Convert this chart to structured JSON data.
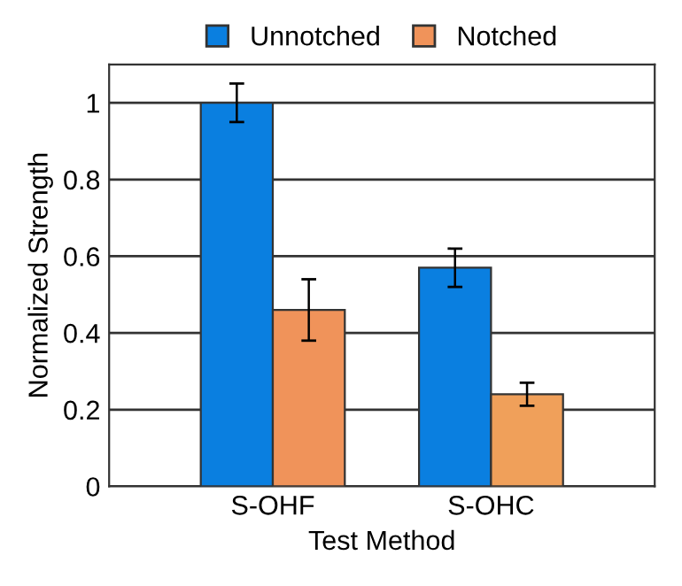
{
  "chart_data": {
    "type": "bar",
    "xlabel": "Test Method",
    "ylabel": "Normalized Strength",
    "categories": [
      "S-OHF",
      "S-OHC"
    ],
    "series": [
      {
        "name": "Unnotched",
        "color": "#0a7fe0",
        "values": [
          1.0,
          0.57
        ],
        "errors": [
          0.05,
          0.05
        ]
      },
      {
        "name": "Notched",
        "color": "#f0935a",
        "colors": [
          "#f0935a",
          "#f0a05a"
        ],
        "values": [
          0.46,
          0.24
        ],
        "errors": [
          0.08,
          0.03
        ]
      }
    ],
    "ylim": [
      0,
      1.1
    ],
    "yticks": [
      0,
      0.2,
      0.4,
      0.6,
      0.8,
      1
    ],
    "grid": "y",
    "legend": "top"
  }
}
